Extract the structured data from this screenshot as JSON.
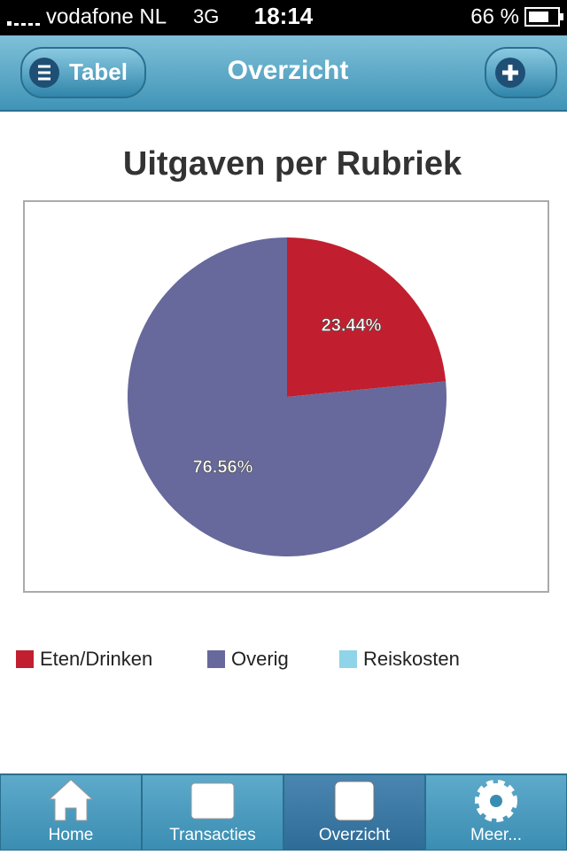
{
  "status_bar": {
    "carrier": "vodafone NL",
    "network": "3G",
    "time": "18:14",
    "battery": "66 %"
  },
  "nav_bar": {
    "left_button": "Tabel",
    "title": "Overzicht"
  },
  "chart_data": {
    "type": "pie",
    "title": "Uitgaven per Rubriek",
    "categories": [
      "Eten/Drinken",
      "Overig",
      "Reiskosten"
    ],
    "values": [
      23.44,
      76.56,
      0
    ],
    "value_labels": [
      "23.44%",
      "76.56%",
      null
    ],
    "colors": [
      "#c11f2f",
      "#67689b",
      "#8fd4e8"
    ]
  },
  "tab_bar": {
    "tabs": [
      "Home",
      "Transacties",
      "Overzicht",
      "Meer..."
    ],
    "active": 2
  }
}
